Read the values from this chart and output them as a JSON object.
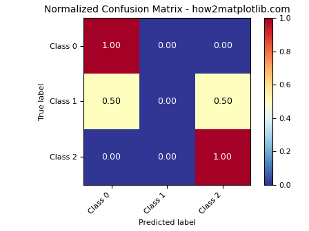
{
  "title": "Normalized Confusion Matrix - how2matplotlib.com",
  "xlabel": "Predicted label",
  "ylabel": "True label",
  "classes": [
    "Class 0",
    "Class 1",
    "Class 2"
  ],
  "matrix": [
    [
      1.0,
      0.0,
      0.0
    ],
    [
      0.5,
      0.0,
      0.5
    ],
    [
      0.0,
      0.0,
      1.0
    ]
  ],
  "colormap": "RdYlBu",
  "vmin": 0.0,
  "vmax": 1.0,
  "figsize": [
    4.48,
    3.36
  ],
  "dpi": 100,
  "title_fontsize": 10,
  "label_fontsize": 8,
  "tick_fontsize": 8,
  "cell_fontsize": 9,
  "colorbar_ticks": [
    0.0,
    0.2,
    0.4,
    0.6,
    0.8,
    1.0
  ]
}
